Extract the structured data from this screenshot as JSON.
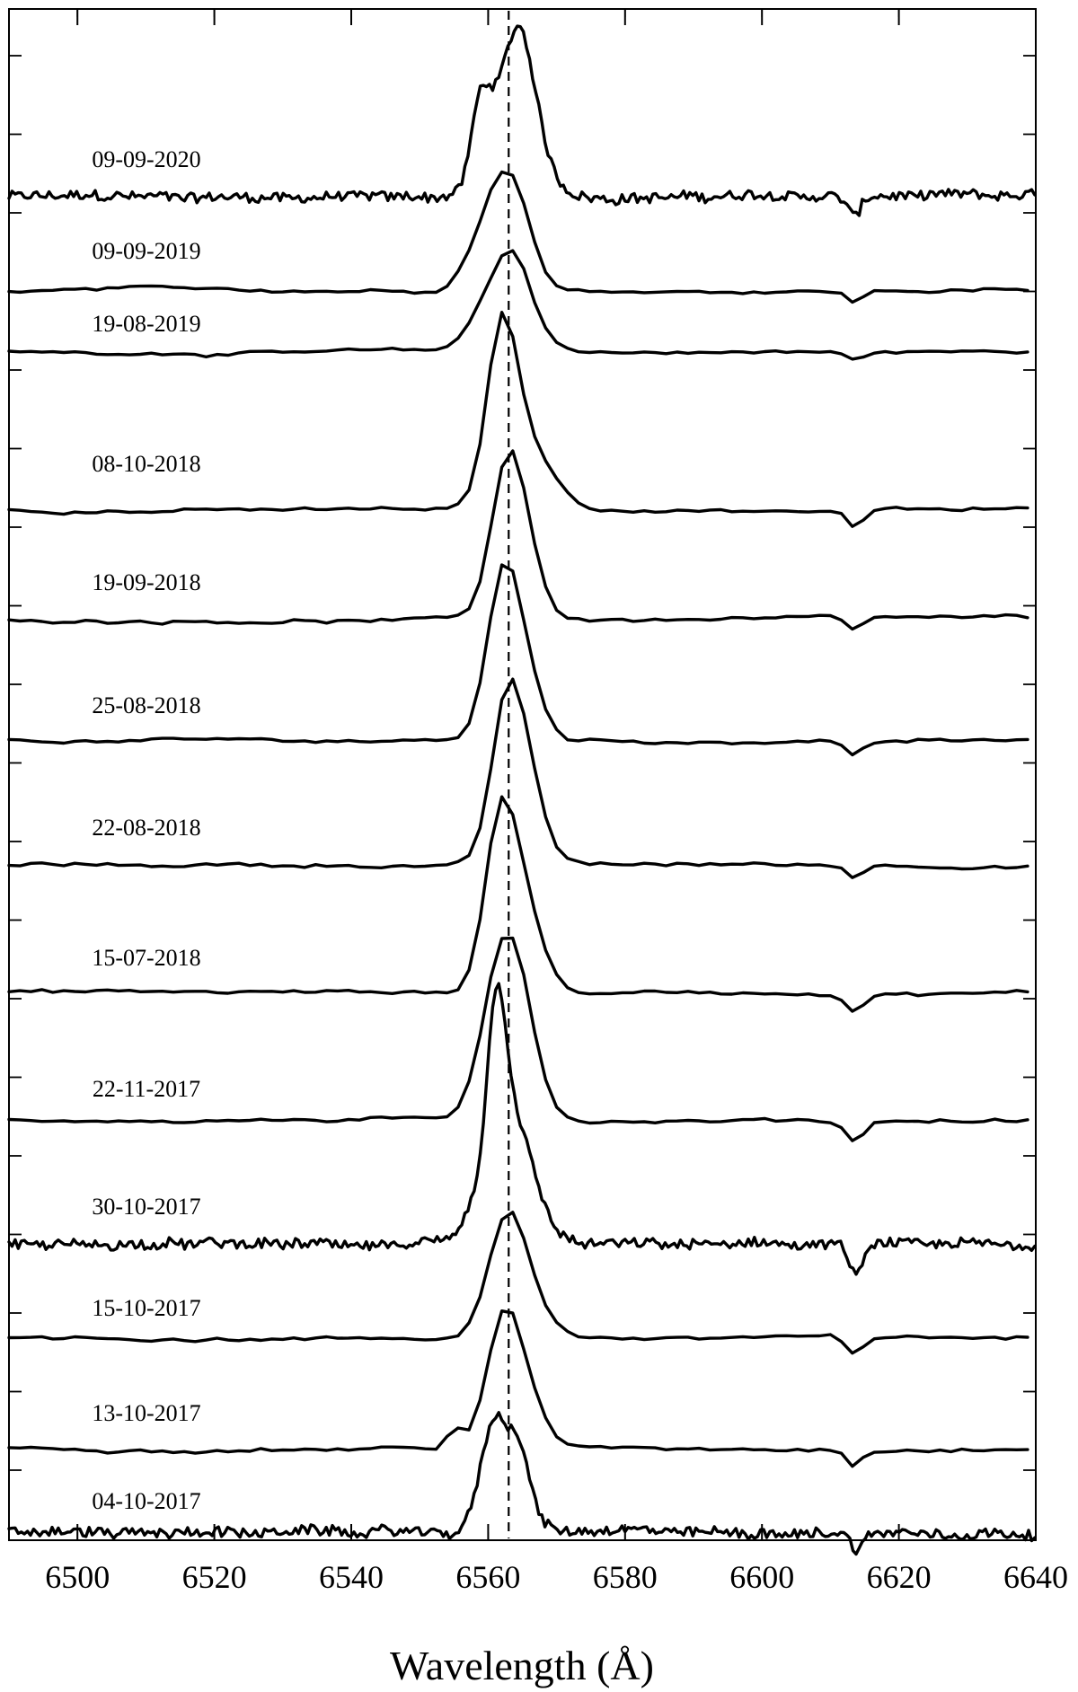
{
  "chart_data": {
    "type": "line",
    "title": "",
    "xlabel": "Wavelength (Å)",
    "ylabel": "",
    "xlim": [
      6490,
      6640
    ],
    "x_ticks": [
      6500,
      6520,
      6540,
      6560,
      6580,
      6600,
      6620,
      6640
    ],
    "reference_line": {
      "x": 6563,
      "style": "dashed"
    },
    "grid": false,
    "legend": "none",
    "series": [
      {
        "name": "09-09-2020",
        "noise": 0.35,
        "peaks": [
          [
            6558.8,
            0.55,
            1.3
          ],
          [
            6561.5,
            0.72,
            2.5
          ],
          [
            6564.8,
            1.0,
            2.0
          ],
          [
            6567.0,
            0.3,
            2.5
          ]
        ],
        "absorption": [
          6613.5,
          0.18,
          0.9
        ]
      },
      {
        "name": "09-09-2019",
        "noise": 0.12,
        "peaks": [
          [
            6558.5,
            0.45,
            2.6
          ],
          [
            6561.5,
            0.85,
            2.3
          ],
          [
            6564.5,
            0.95,
            2.4
          ]
        ],
        "absorption": [
          6613.5,
          0.15,
          1.2
        ]
      },
      {
        "name": "19-08-2019",
        "noise": 0.12,
        "peaks": [
          [
            6558.5,
            0.35,
            2.3
          ],
          [
            6561.5,
            0.6,
            2.3
          ],
          [
            6564.0,
            0.95,
            2.2
          ],
          [
            6567.0,
            0.25,
            2.5
          ]
        ],
        "absorption": [
          6613.5,
          0.13,
          1.2
        ]
      },
      {
        "name": "08-10-2018",
        "noise": 0.1,
        "peaks": [
          [
            6562.0,
            1.0,
            2.2
          ],
          [
            6566.0,
            0.35,
            3.5
          ]
        ],
        "absorption": [
          6613.5,
          0.1,
          1.2
        ]
      },
      {
        "name": "19-09-2018",
        "noise": 0.1,
        "peaks": [
          [
            6562.8,
            1.0,
            2.4
          ],
          [
            6565.8,
            0.28,
            2.4
          ]
        ],
        "absorption": [
          6613.5,
          0.08,
          1.2
        ]
      },
      {
        "name": "25-08-2018",
        "noise": 0.1,
        "peaks": [
          [
            6562.3,
            1.0,
            2.4
          ],
          [
            6565.8,
            0.28,
            2.5
          ]
        ],
        "absorption": [
          6613.5,
          0.08,
          1.2
        ]
      },
      {
        "name": "22-08-2018",
        "noise": 0.1,
        "peaks": [
          [
            6562.8,
            1.0,
            2.3
          ],
          [
            6566.0,
            0.4,
            2.4
          ]
        ],
        "absorption": [
          6613.5,
          0.08,
          1.2
        ]
      },
      {
        "name": "15-07-2018",
        "noise": 0.1,
        "peaks": [
          [
            6561.8,
            1.0,
            2.3
          ],
          [
            6565.5,
            0.45,
            2.6
          ]
        ],
        "absorption": [
          6613.5,
          0.1,
          1.2
        ]
      },
      {
        "name": "22-11-2017",
        "noise": 0.1,
        "peaks": [
          [
            6563.5,
            1.0,
            3.0
          ],
          [
            6560.5,
            0.3,
            2.5
          ]
        ],
        "absorption": [
          6613.5,
          0.12,
          1.4
        ]
      },
      {
        "name": "30-10-2017",
        "noise": 0.35,
        "peaks": [
          [
            6561.2,
            1.0,
            1.3
          ],
          [
            6563.0,
            0.6,
            2.2
          ],
          [
            6566.0,
            0.3,
            2.5
          ],
          [
            6558.5,
            0.25,
            1.8
          ]
        ],
        "absorption": [
          6613.8,
          0.2,
          0.9
        ]
      },
      {
        "name": "15-10-2017",
        "noise": 0.1,
        "peaks": [
          [
            6562.8,
            1.0,
            2.8
          ],
          [
            6566.5,
            0.2,
            3.0
          ]
        ],
        "absorption": [
          6613.5,
          0.15,
          1.2
        ]
      },
      {
        "name": "13-10-2017",
        "noise": 0.12,
        "peaks": [
          [
            6562.5,
            1.0,
            2.6
          ],
          [
            6555.0,
            0.16,
            1.0
          ],
          [
            6566.5,
            0.18,
            2.5
          ]
        ],
        "absorption": [
          6613.5,
          0.12,
          1.0
        ]
      },
      {
        "name": "04-10-2017",
        "noise": 0.35,
        "peaks": [
          [
            6561.0,
            1.0,
            2.0
          ],
          [
            6564.5,
            0.55,
            1.3
          ],
          [
            6566.5,
            0.15,
            1.5
          ]
        ],
        "absorption": [
          6613.8,
          0.15,
          0.9
        ]
      }
    ]
  }
}
